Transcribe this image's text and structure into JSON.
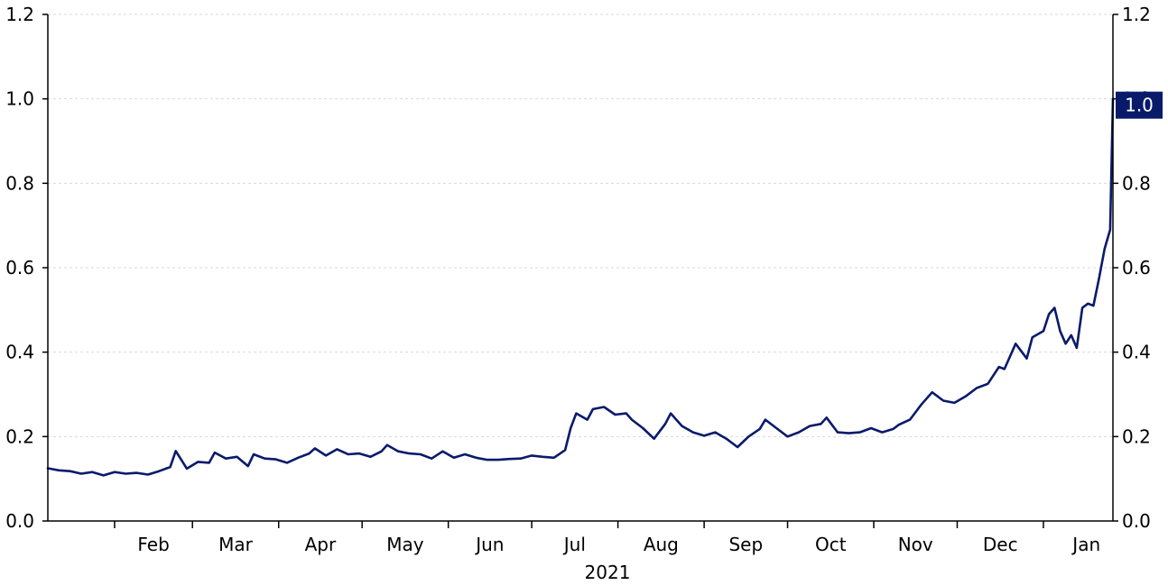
{
  "colors": {
    "series": "#0a1a6b",
    "label_bg": "#0a1a6b",
    "label_text": "#ffffff"
  },
  "chart_data": {
    "type": "line",
    "title": "",
    "xlabel": "2021",
    "ylabel": "",
    "x_unit": "month",
    "x_tick_labels": [
      "Feb",
      "Mar",
      "Apr",
      "May",
      "Jun",
      "Jul",
      "Aug",
      "Sep",
      "Oct",
      "Nov",
      "Dec",
      "Jan"
    ],
    "y_tick_labels": [
      "0.0",
      "0.2",
      "0.4",
      "0.6",
      "0.8",
      "1.0",
      "1.2"
    ],
    "y_ticks": [
      0,
      0.2,
      0.4,
      0.6,
      0.8,
      1.0,
      1.2
    ],
    "ylim": [
      0,
      1.2
    ],
    "xlim": [
      "2021-01-08",
      "2022-01-26"
    ],
    "y_axis_sides": [
      "left",
      "right"
    ],
    "grid": "horizontal-dashed",
    "last_value_label": "1.0",
    "series": [
      {
        "points": [
          [
            "2021-01-08",
            0.125
          ],
          [
            "2021-01-12",
            0.12
          ],
          [
            "2021-01-16",
            0.118
          ],
          [
            "2021-01-20",
            0.112
          ],
          [
            "2021-01-24",
            0.116
          ],
          [
            "2021-01-28",
            0.108
          ],
          [
            "2021-02-01",
            0.116
          ],
          [
            "2021-02-05",
            0.112
          ],
          [
            "2021-02-09",
            0.114
          ],
          [
            "2021-02-13",
            0.11
          ],
          [
            "2021-02-17",
            0.118
          ],
          [
            "2021-02-21",
            0.128
          ],
          [
            "2021-02-23",
            0.166
          ],
          [
            "2021-02-27",
            0.124
          ],
          [
            "2021-03-03",
            0.14
          ],
          [
            "2021-03-07",
            0.138
          ],
          [
            "2021-03-09",
            0.162
          ],
          [
            "2021-03-13",
            0.148
          ],
          [
            "2021-03-17",
            0.152
          ],
          [
            "2021-03-21",
            0.13
          ],
          [
            "2021-03-23",
            0.158
          ],
          [
            "2021-03-27",
            0.148
          ],
          [
            "2021-03-31",
            0.146
          ],
          [
            "2021-04-04",
            0.138
          ],
          [
            "2021-04-08",
            0.15
          ],
          [
            "2021-04-12",
            0.16
          ],
          [
            "2021-04-14",
            0.172
          ],
          [
            "2021-04-18",
            0.155
          ],
          [
            "2021-04-22",
            0.17
          ],
          [
            "2021-04-26",
            0.158
          ],
          [
            "2021-04-30",
            0.16
          ],
          [
            "2021-05-04",
            0.152
          ],
          [
            "2021-05-08",
            0.165
          ],
          [
            "2021-05-10",
            0.18
          ],
          [
            "2021-05-14",
            0.165
          ],
          [
            "2021-05-18",
            0.16
          ],
          [
            "2021-05-22",
            0.158
          ],
          [
            "2021-05-26",
            0.148
          ],
          [
            "2021-05-30",
            0.165
          ],
          [
            "2021-06-03",
            0.15
          ],
          [
            "2021-06-07",
            0.158
          ],
          [
            "2021-06-11",
            0.15
          ],
          [
            "2021-06-15",
            0.145
          ],
          [
            "2021-06-19",
            0.145
          ],
          [
            "2021-06-23",
            0.147
          ],
          [
            "2021-06-27",
            0.148
          ],
          [
            "2021-07-01",
            0.155
          ],
          [
            "2021-07-05",
            0.152
          ],
          [
            "2021-07-09",
            0.15
          ],
          [
            "2021-07-13",
            0.168
          ],
          [
            "2021-07-15",
            0.22
          ],
          [
            "2021-07-17",
            0.255
          ],
          [
            "2021-07-21",
            0.24
          ],
          [
            "2021-07-23",
            0.265
          ],
          [
            "2021-07-27",
            0.27
          ],
          [
            "2021-07-31",
            0.252
          ],
          [
            "2021-08-04",
            0.255
          ],
          [
            "2021-08-06",
            0.24
          ],
          [
            "2021-08-10",
            0.22
          ],
          [
            "2021-08-14",
            0.195
          ],
          [
            "2021-08-18",
            0.23
          ],
          [
            "2021-08-20",
            0.255
          ],
          [
            "2021-08-24",
            0.225
          ],
          [
            "2021-08-28",
            0.21
          ],
          [
            "2021-09-01",
            0.202
          ],
          [
            "2021-09-05",
            0.21
          ],
          [
            "2021-09-09",
            0.195
          ],
          [
            "2021-09-13",
            0.175
          ],
          [
            "2021-09-17",
            0.2
          ],
          [
            "2021-09-21",
            0.218
          ],
          [
            "2021-09-23",
            0.24
          ],
          [
            "2021-09-27",
            0.22
          ],
          [
            "2021-10-01",
            0.2
          ],
          [
            "2021-10-05",
            0.21
          ],
          [
            "2021-10-09",
            0.225
          ],
          [
            "2021-10-13",
            0.23
          ],
          [
            "2021-10-15",
            0.245
          ],
          [
            "2021-10-19",
            0.21
          ],
          [
            "2021-10-23",
            0.208
          ],
          [
            "2021-10-27",
            0.21
          ],
          [
            "2021-10-31",
            0.22
          ],
          [
            "2021-11-04",
            0.21
          ],
          [
            "2021-11-08",
            0.218
          ],
          [
            "2021-11-10",
            0.228
          ],
          [
            "2021-11-14",
            0.24
          ],
          [
            "2021-11-18",
            0.275
          ],
          [
            "2021-11-22",
            0.305
          ],
          [
            "2021-11-26",
            0.285
          ],
          [
            "2021-11-30",
            0.28
          ],
          [
            "2021-12-04",
            0.295
          ],
          [
            "2021-12-08",
            0.315
          ],
          [
            "2021-12-12",
            0.325
          ],
          [
            "2021-12-16",
            0.365
          ],
          [
            "2021-12-18",
            0.36
          ],
          [
            "2021-12-22",
            0.42
          ],
          [
            "2021-12-26",
            0.385
          ],
          [
            "2021-12-28",
            0.435
          ],
          [
            "2022-01-01",
            0.45
          ],
          [
            "2022-01-03",
            0.49
          ],
          [
            "2022-01-05",
            0.505
          ],
          [
            "2022-01-07",
            0.45
          ],
          [
            "2022-01-09",
            0.42
          ],
          [
            "2022-01-11",
            0.44
          ],
          [
            "2022-01-13",
            0.41
          ],
          [
            "2022-01-15",
            0.505
          ],
          [
            "2022-01-17",
            0.515
          ],
          [
            "2022-01-19",
            0.51
          ],
          [
            "2022-01-21",
            0.575
          ],
          [
            "2022-01-23",
            0.645
          ],
          [
            "2022-01-25",
            0.69
          ],
          [
            "2022-01-26",
            1.0
          ]
        ]
      }
    ]
  }
}
